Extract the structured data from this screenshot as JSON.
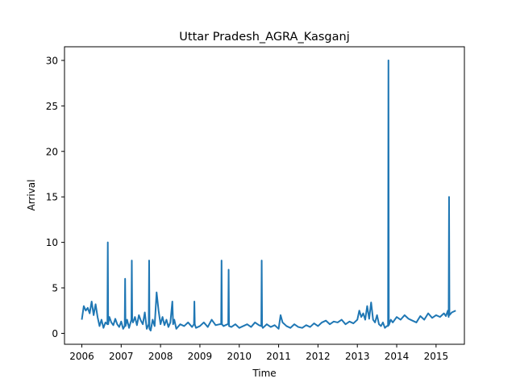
{
  "chart_data": {
    "type": "line",
    "title": "Uttar Pradesh_AGRA_Kasganj",
    "xlabel": "Time",
    "ylabel": "Arrival",
    "xlim": [
      2005.56,
      2015.72
    ],
    "ylim": [
      -1.2,
      31.5
    ],
    "xticks": [
      "2006",
      "2007",
      "2008",
      "2009",
      "2010",
      "2011",
      "2012",
      "2013",
      "2014",
      "2015"
    ],
    "yticks": [
      0,
      5,
      10,
      15,
      20,
      25,
      30
    ],
    "grid": false,
    "legend": "none",
    "color": "#1f77b4",
    "series": [
      {
        "x": [
          2006.0,
          2006.05,
          2006.1,
          2006.15,
          2006.2,
          2006.25,
          2006.3,
          2006.35,
          2006.4,
          2006.45,
          2006.5,
          2006.55,
          2006.6,
          2006.65,
          2006.66,
          2006.67,
          2006.7,
          2006.75,
          2006.8,
          2006.85,
          2006.9,
          2006.95,
          2007.0,
          2007.05,
          2007.09,
          2007.1,
          2007.11,
          2007.15,
          2007.2,
          2007.26,
          2007.27,
          2007.28,
          2007.3,
          2007.35,
          2007.4,
          2007.45,
          2007.5,
          2007.55,
          2007.6,
          2007.65,
          2007.7,
          2007.71,
          2007.72,
          2007.75,
          2007.8,
          2007.85,
          2007.9,
          2007.95,
          2008.0,
          2008.05,
          2008.1,
          2008.15,
          2008.2,
          2008.25,
          2008.3,
          2008.32,
          2008.35,
          2008.4,
          2008.5,
          2008.6,
          2008.7,
          2008.8,
          2008.85,
          2008.86,
          2008.87,
          2008.9,
          2009.0,
          2009.1,
          2009.2,
          2009.3,
          2009.4,
          2009.5,
          2009.54,
          2009.55,
          2009.56,
          2009.6,
          2009.7,
          2009.72,
          2009.73,
          2009.74,
          2009.8,
          2009.9,
          2010.0,
          2010.1,
          2010.2,
          2010.3,
          2010.4,
          2010.5,
          2010.56,
          2010.57,
          2010.58,
          2010.6,
          2010.7,
          2010.8,
          2010.9,
          2011.0,
          2011.05,
          2011.1,
          2011.2,
          2011.3,
          2011.4,
          2011.5,
          2011.6,
          2011.7,
          2011.8,
          2011.9,
          2012.0,
          2012.1,
          2012.2,
          2012.3,
          2012.4,
          2012.5,
          2012.6,
          2012.7,
          2012.8,
          2012.9,
          2013.0,
          2013.05,
          2013.1,
          2013.15,
          2013.2,
          2013.25,
          2013.3,
          2013.35,
          2013.4,
          2013.45,
          2013.5,
          2013.55,
          2013.6,
          2013.65,
          2013.7,
          2013.75,
          2013.78,
          2013.79,
          2013.8,
          2013.85,
          2013.9,
          2014.0,
          2014.1,
          2014.2,
          2014.3,
          2014.4,
          2014.5,
          2014.6,
          2014.7,
          2014.8,
          2014.9,
          2015.0,
          2015.1,
          2015.2,
          2015.25,
          2015.3,
          2015.32,
          2015.33,
          2015.34,
          2015.4,
          2015.5
        ],
        "y": [
          1.5,
          3.0,
          2.5,
          2.8,
          2.2,
          3.5,
          2.0,
          3.2,
          1.8,
          0.8,
          1.5,
          0.6,
          1.2,
          1.0,
          10.0,
          1.0,
          1.8,
          1.2,
          0.9,
          1.6,
          1.0,
          0.7,
          1.3,
          0.5,
          0.8,
          6.0,
          0.8,
          1.5,
          0.6,
          1.5,
          8.0,
          1.5,
          1.2,
          1.8,
          0.9,
          2.0,
          1.4,
          1.0,
          2.3,
          0.5,
          1.0,
          8.0,
          0.5,
          0.3,
          1.5,
          0.8,
          4.5,
          2.5,
          1.0,
          1.8,
          0.9,
          1.5,
          0.7,
          1.2,
          3.5,
          1.0,
          1.5,
          0.5,
          1.0,
          0.8,
          1.2,
          0.7,
          1.0,
          3.5,
          1.0,
          0.6,
          0.8,
          1.2,
          0.7,
          1.5,
          0.9,
          1.0,
          1.0,
          8.0,
          1.0,
          0.8,
          1.0,
          1.0,
          7.0,
          0.8,
          0.7,
          1.0,
          0.6,
          0.8,
          1.0,
          0.7,
          1.2,
          0.9,
          0.8,
          8.0,
          0.8,
          0.6,
          1.0,
          0.7,
          0.9,
          0.5,
          2.0,
          1.2,
          0.8,
          0.6,
          1.0,
          0.7,
          0.6,
          0.9,
          0.7,
          1.1,
          0.8,
          1.2,
          1.4,
          1.0,
          1.3,
          1.2,
          1.5,
          1.0,
          1.3,
          1.1,
          1.5,
          2.5,
          1.8,
          2.2,
          1.5,
          3.0,
          1.6,
          3.4,
          1.5,
          1.2,
          2.0,
          1.0,
          0.8,
          1.2,
          0.6,
          0.8,
          0.8,
          30.0,
          0.9,
          1.5,
          1.2,
          1.8,
          1.5,
          2.0,
          1.6,
          1.4,
          1.2,
          1.9,
          1.5,
          2.2,
          1.7,
          2.0,
          1.8,
          2.2,
          1.9,
          2.5,
          1.8,
          15.0,
          2.0,
          2.3,
          2.5
        ]
      }
    ]
  }
}
